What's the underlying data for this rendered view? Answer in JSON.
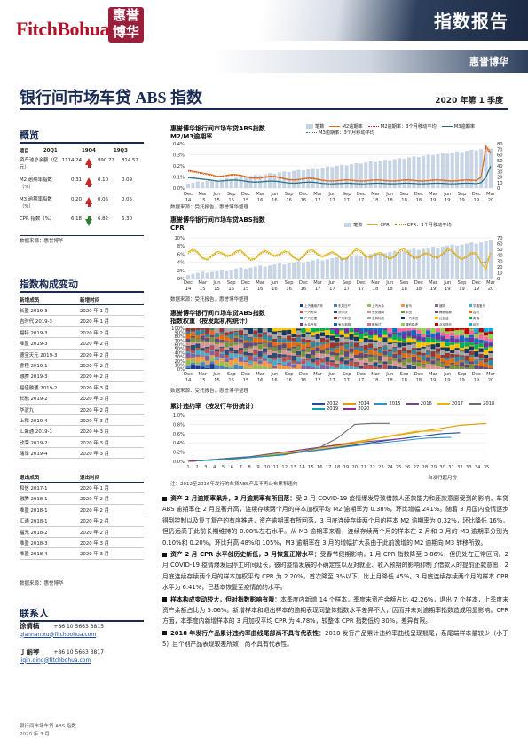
{
  "header": {
    "logo_text": "FitchBohua",
    "logo_seal": "惠誉博华",
    "title": "指数报告",
    "subtitle": "惠誉博华"
  },
  "doc": {
    "title": "银行间市场车贷 ABS 指数",
    "date": "2020 年第 1 季度"
  },
  "overview": {
    "title": "概览",
    "cols": [
      "项目",
      "20Q1",
      "19Q4",
      "19Q3"
    ],
    "rows": [
      {
        "label": "资产池总余额（亿元）",
        "q1": "1114.24",
        "q4": "890.72",
        "q3": "814.52",
        "dir": "up"
      },
      {
        "label": "M2 逾期率指数（%）",
        "q1": "0.31",
        "q4": "0.10",
        "q3": "0.09",
        "dir": "up"
      },
      {
        "label": "M3 逾期率指数（%）",
        "q1": "0.20",
        "q4": "0.05",
        "q3": "0.05",
        "dir": "up"
      },
      {
        "label": "CPR 指数（%）",
        "q1": "6.18",
        "q4": "6.82",
        "q3": "6.30",
        "dir": "down"
      }
    ],
    "source": "数据来源：惠誉博华"
  },
  "constituents": {
    "title": "指数构成变动",
    "new_header": [
      "新增成员",
      "新增时间"
    ],
    "new_rows": [
      [
        "长盈 2019-3",
        "2020 年 1 月"
      ],
      [
        "吉时代 2019-3",
        "2020 年 1 月"
      ],
      [
        "福特 2019-3",
        "2020 年 2 月"
      ],
      [
        "唯盈 2019-3",
        "2020 年 2 月"
      ],
      [
        "德宝天元 2019-3",
        "2020 年 2 月"
      ],
      [
        "睿程 2019-1",
        "2020 年 2 月"
      ],
      [
        "融腾 2019-3",
        "2020 年 2 月"
      ],
      [
        "福佳融通 2019-2",
        "2020 年 3 月"
      ],
      [
        "长融 2019-2",
        "2020 年 3 月"
      ],
      [
        "华驭九",
        "2020 年 2 月"
      ],
      [
        "上和 2019-4",
        "2020 年 3 月"
      ],
      [
        "汇聚通 2019-1",
        "2020 年 3 月"
      ],
      [
        "欣荣 2019-2",
        "2020 年 3 月"
      ],
      [
        "瑞泽 2019-4",
        "2020 年 3 月"
      ]
    ],
    "exit_header": [
      "退出成员",
      "退出时间"
    ],
    "exit_rows": [
      [
        "和信 2017-1",
        "2020 年 1 月"
      ],
      [
        "融腾 2018-1",
        "2020 年 2 月"
      ],
      [
        "唯盈 2018-1",
        "2020 年 2 月"
      ],
      [
        "汇通 2018-1",
        "2020 年 2 月"
      ],
      [
        "福元 2018-2",
        "2020 年 2 月"
      ],
      [
        "唯盈 2018-3",
        "2020 年 3 月"
      ],
      [
        "唯盈 2018-4",
        "2020 年 3 月"
      ]
    ],
    "source": "数据来源：惠誉博华"
  },
  "contacts": {
    "title": "联系人",
    "people": [
      {
        "name": "徐倩楠",
        "phone": "+86 10 5663 3815",
        "email": "qiannan.xu@fitchbohua.com"
      },
      {
        "name": "丁丽琴",
        "phone": "+86 10 5663 3817",
        "email": "liqin.ding@fitchbohua.com"
      }
    ]
  },
  "charts": {
    "x_labels": [
      "Dec 14",
      "Mar 15",
      "Jun 15",
      "Sep 15",
      "Dec 15",
      "Mar 16",
      "Jun 16",
      "Sep 16",
      "Dec 16",
      "Mar 17",
      "Jun 17",
      "Sep 17",
      "Dec 17",
      "Mar 18",
      "Jun 18",
      "Sep 18",
      "Dec 18",
      "Mar 19",
      "Jun 19",
      "Sep 19",
      "Dec 19",
      "Mar 20"
    ],
    "source": "数据来源：受托报告，惠誉博华整理",
    "c1": {
      "title_l1": "惠誉博华银行间市场车贷ABS指数",
      "title_l2": "M2/M3逾期率",
      "legend": [
        "笔数",
        "M2逾期率",
        "M2逾期率：3个月移动平均",
        "M3逾期率",
        "M3逾期率：3个月移动平均"
      ],
      "yl": [
        "0.4%",
        "0.3%",
        "0.2%",
        "0.1%",
        "0.0%"
      ],
      "yr": [
        "80",
        "70",
        "60",
        "50",
        "40",
        "30",
        "20",
        "10",
        "0"
      ]
    },
    "c2": {
      "title_l1": "惠誉博华银行间市场车贷ABS指数",
      "title_l2": "CPR",
      "legend": [
        "笔数",
        "CPR",
        "CPR：3个月移动平均"
      ],
      "yl": [
        "10%",
        "8%",
        "6%",
        "4%",
        "2%",
        "0%"
      ],
      "yr": [
        "70",
        "60",
        "50",
        "40",
        "30",
        "20",
        "10",
        "0"
      ]
    },
    "c3": {
      "title_l1": "惠誉博华银行间市场车贷ABS指数",
      "title_l2": "指数权重（按发起机构统计）",
      "legend": [
        "上汽通用汽车",
        "东风日产",
        "上汽大众",
        "宝马",
        "福特",
        "华晨宝马",
        "一汽大众",
        "沃尔沃",
        "长安福特",
        "丰田",
        "梅赛德斯",
        "吉利",
        "广汽汇理",
        "广汽丰田",
        "东风标致",
        "一汽丰田",
        "比亚迪",
        "奇瑞",
        "大众汽车",
        "宝马金融",
        "斯柯达",
        "捷豹路虎",
        "北京现代",
        "起亚",
        "东风本田",
        "北汽",
        "日产",
        "其他",
        "华泰",
        "金融控股"
      ],
      "yl": [
        "100%",
        "90%",
        "80%",
        "70%",
        "60%",
        "50%",
        "40%",
        "30%",
        "20%",
        "10%",
        "0%"
      ]
    },
    "c4": {
      "title": "累计违约率（按发行年份统计）",
      "legend": [
        "2012",
        "2014",
        "2015",
        "2016",
        "2017",
        "2018",
        "2019",
        "2020"
      ],
      "yl": [
        "1.0%",
        "0.8%",
        "0.6%",
        "0.4%",
        "0.2%",
        "0.0%"
      ],
      "xl": [
        "1",
        "2",
        "3",
        "4",
        "5",
        "6",
        "7",
        "8",
        "9",
        "10",
        "11",
        "12",
        "13",
        "14",
        "15",
        "16",
        "17",
        "18",
        "19",
        "20",
        "21",
        "22",
        "23",
        "24",
        "25",
        "26",
        "27",
        "28",
        "29",
        "30",
        "31",
        "32",
        "33",
        "34",
        "35"
      ],
      "xlabel": "自发行起月份",
      "note": "注：2012至2016年发行的车贷ABS产品不再公布累积违约",
      "source": "数据来源：受托报告，惠誉博华整理"
    }
  },
  "paras": [
    {
      "lead": "资产 2 月逾期率飙升，3 月逾期率有所回落：",
      "text": "受 2 月 COVID-19 疫情爆发导致借款人还款能力和还款意愿受到的影响，车贷 ABS 逾期率在 2 月显著升高，连续存续两个月的样本加权平均 M2 逾期率为 0.38%，环比增幅 241%。随着 3 月国内疫情逐步得到控制以及复工复产的有序推进，资产逾期率有所回落，3 月底连续存续两个月的样本 M2 逾期率为 0.32%，环比降低 16%，但仍远高于此前长期维持的 0.08%左右水平。从 M3 逾期率来看，连续存续两个月的样本在 2 月和 3 月的 M3 逾期率分别为 0.10%和 0.20%，环比升高 48%和 105%，M3 逾期率在 3 月的增幅扩大系由于此前激增的 M2 逾期向 M3 转移所致。"
    },
    {
      "lead": "资产 2 月 CPR 水平创历史新低，3 月恢复正常水平：",
      "text": "受春节假期影响，1 月 CPR 指数降至 3.86%，但仍处在正常区间。2 月 COVID-19 疫情爆发后停工时间延长，彼时疫情发展的不确定性以及对就业、收入预期的影响抑制了借款人的提前还款意愿，2 月底连续存续两个月的样本加权平均 CPR 为 2.20%，首次降至 3%以下，比上月降低 45%。3 月底连续存续两个月的样本 CPR 水平为 6.41%，已基本恢复至疫情前的水平。"
    },
    {
      "lead": "样本构成变动较大，但对指数影响有限：",
      "text": "本季度内新增 14 个样本，季度末资产余额占比 42.26%，退出 7 个样本，上季度末资产余额占比为 5.06%。新增样本和退出样本的逾期表现同整体指数水平差异不大，因而并未对逾期率指数造成明显影响。CPR 方面，本季度内新增样本的 3 月加权平均 CPR 为 4.78%，较整体 CPR 指数低约 30%，差异有限。"
    },
    {
      "lead": "2018 年发行产品累计违约率曲线尾部尚不具有代表性：",
      "text": "2018 发行产品累计违约率曲线呈现翘尾，系尾端样本量较少（小于 5）且个别产品表现较差所致，尚不具有代表性。"
    }
  ],
  "footer": {
    "l1": "银行间市场车贷 ABS 指数",
    "l2": "2020 年 3 月"
  },
  "colors": {
    "navy": "#1a2b55",
    "red": "#b0122a",
    "bars": "#c7d4e6",
    "orange": "#e46c0a",
    "teal": "#2a6f7f",
    "yellow": "#f0b400"
  }
}
